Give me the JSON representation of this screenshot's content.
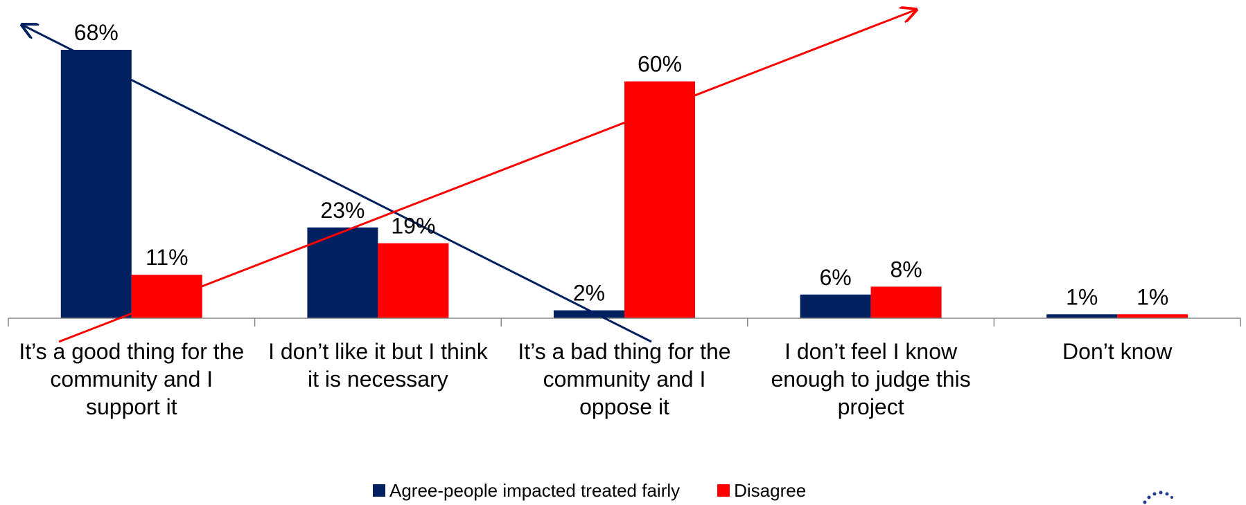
{
  "chart_data": {
    "type": "bar",
    "title": "",
    "xlabel": "",
    "ylabel": "",
    "ylim": [
      0,
      0.72
    ],
    "grid": false,
    "legend_position": "bottom",
    "categories": [
      "It’s a good thing for the community and I support it",
      "I don’t like it but I think it is necessary",
      "It’s a bad thing for the community and I oppose it",
      "I don’t feel I know enough to judge this project",
      "Don’t know"
    ],
    "series": [
      {
        "name": "Agree-people impacted treated fairly",
        "color": "#002060",
        "values": [
          0.68,
          0.23,
          0.02,
          0.06,
          0.01
        ],
        "labels": [
          "68%",
          "23%",
          "2%",
          "6%",
          "1%"
        ]
      },
      {
        "name": "Disagree",
        "color": "#ff0000",
        "values": [
          0.11,
          0.19,
          0.6,
          0.08,
          0.01
        ],
        "labels": [
          "11%",
          "19%",
          "60%",
          "8%",
          "1%"
        ]
      }
    ],
    "annotations": [
      {
        "type": "trend-arrow",
        "series": "Agree-people impacted treated fairly",
        "direction": "up-left",
        "color": "#002060"
      },
      {
        "type": "trend-arrow",
        "series": "Disagree",
        "direction": "up-right",
        "color": "#ff0000"
      }
    ]
  },
  "category_lines": [
    [
      "It’s a good thing for the",
      "community and I",
      "support it"
    ],
    [
      "I don’t like it but I think",
      "it is necessary"
    ],
    [
      "It’s a bad thing for the",
      "community and I",
      "oppose it"
    ],
    [
      "I don’t feel I know",
      "enough to judge this",
      "project"
    ],
    [
      "Don’t know"
    ]
  ],
  "legend": {
    "agree_label": "Agree-people impacted treated fairly",
    "disagree_label": "Disagree"
  },
  "logo_icon": "dots-arc-logo-icon"
}
